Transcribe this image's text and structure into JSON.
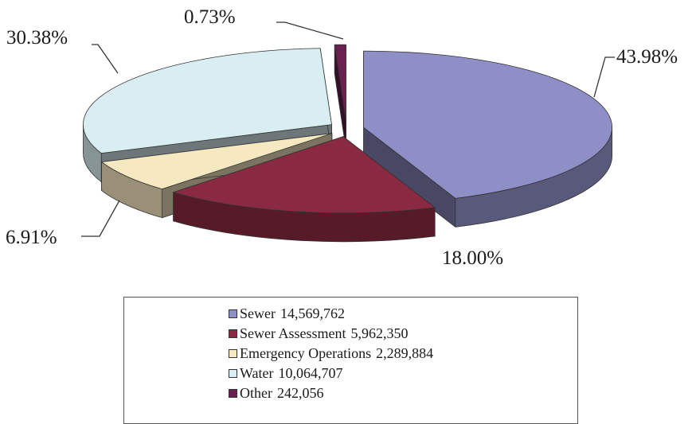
{
  "chart_data": {
    "type": "pie",
    "title": "",
    "series": [
      {
        "name": "Sewer",
        "value": 14569762,
        "percent": "43.98%",
        "color": "#8f8fc8"
      },
      {
        "name": "Sewer Assessment",
        "value": 5962350,
        "percent": "18.00%",
        "color": "#8a2a42"
      },
      {
        "name": "Emergency Operations",
        "value": 2289884,
        "percent": "6.91%",
        "color": "#f6e8c0"
      },
      {
        "name": "Water",
        "value": 10064707,
        "percent": "30.38%",
        "color": "#d9eef2"
      },
      {
        "name": "Other",
        "value": 242056,
        "percent": "0.73%",
        "color": "#6a2050"
      }
    ],
    "legend": {
      "placement": "bottom",
      "entries": [
        {
          "label": "Sewer",
          "value_text": "14,569,762"
        },
        {
          "label": "Sewer Assessment",
          "value_text": "5,962,350"
        },
        {
          "label": "Emergency Operations",
          "value_text": "2,289,884"
        },
        {
          "label": "Water",
          "value_text": "10,064,707"
        },
        {
          "label": "Other",
          "value_text": "242,056"
        }
      ]
    }
  }
}
